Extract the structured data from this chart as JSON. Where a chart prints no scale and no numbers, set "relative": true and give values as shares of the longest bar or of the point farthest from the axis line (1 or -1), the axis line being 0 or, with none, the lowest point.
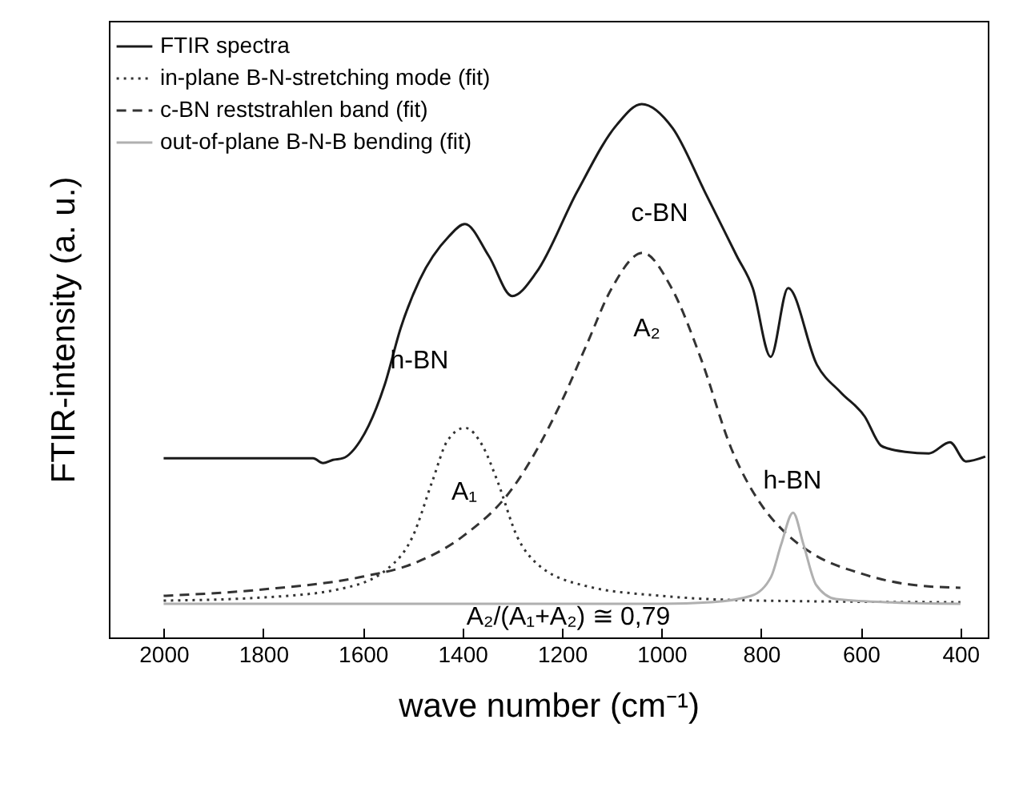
{
  "chart_data": {
    "type": "line",
    "relative": true,
    "xlabel": "wave number  (cm⁻¹)",
    "ylabel": "FTIR-intensity (a. u.)",
    "xlim": [
      2110,
      345
    ],
    "xticks": [
      2000,
      1800,
      1600,
      1400,
      1200,
      1000,
      800,
      600,
      400
    ],
    "grid": false,
    "legend": "top left",
    "tick_labels": "x",
    "series": [
      {
        "name": "FTIR spectra",
        "color": "#1a1a1a",
        "line_style": "solid",
        "x": [
          2000,
          1800,
          1700,
          1680,
          1660,
          1640,
          1605,
          1556,
          1524,
          1486,
          1428,
          1395,
          1347,
          1300,
          1251,
          1170,
          1090,
          1040,
          978,
          913,
          849,
          817,
          781,
          746,
          688,
          640,
          592,
          560,
          544,
          511,
          463,
          421,
          389,
          350
        ],
        "values": [
          0.336,
          0.336,
          0.336,
          0.327,
          0.333,
          0.336,
          0.369,
          0.474,
          0.58,
          0.67,
          0.751,
          0.775,
          0.715,
          0.64,
          0.685,
          0.835,
          0.961,
          1.0,
          0.955,
          0.835,
          0.715,
          0.655,
          0.526,
          0.655,
          0.511,
          0.459,
          0.414,
          0.36,
          0.354,
          0.348,
          0.345,
          0.366,
          0.33,
          0.339
        ]
      },
      {
        "name": "in-plane B-N-stretching mode (fit)",
        "color": "#333333",
        "line_style": "dotted",
        "x": [
          2000,
          1800,
          1650,
          1550,
          1500,
          1460,
          1430,
          1395,
          1360,
          1330,
          1290,
          1250,
          1150,
          1000,
          800,
          400
        ],
        "values": [
          0.069,
          0.075,
          0.09,
          0.129,
          0.189,
          0.294,
          0.369,
          0.393,
          0.36,
          0.294,
          0.189,
          0.138,
          0.096,
          0.078,
          0.069,
          0.066
        ]
      },
      {
        "name": "c-BN reststrahlen band (fit)",
        "color": "#333333",
        "line_style": "dashed",
        "x": [
          2000,
          1800,
          1600,
          1500,
          1400,
          1300,
          1200,
          1150,
          1100,
          1038,
          980,
          920,
          860,
          800,
          750,
          700,
          600,
          500,
          400
        ],
        "values": [
          0.078,
          0.09,
          0.114,
          0.138,
          0.189,
          0.279,
          0.444,
          0.55,
          0.655,
          0.721,
          0.655,
          0.52,
          0.354,
          0.249,
          0.195,
          0.159,
          0.12,
          0.099,
          0.093
        ]
      },
      {
        "name": "out-of-plane B-N-B bending (fit)",
        "color": "#b0b0b0",
        "line_style": "solid",
        "x": [
          2000,
          1000,
          900,
          820,
          780,
          760,
          736,
          715,
          690,
          650,
          550,
          400
        ],
        "values": [
          0.063,
          0.063,
          0.066,
          0.078,
          0.114,
          0.174,
          0.234,
          0.174,
          0.099,
          0.072,
          0.066,
          0.063
        ]
      }
    ],
    "annotations": [
      "h-BN",
      "c-BN",
      "A₂",
      "A₁",
      "h-BN",
      "A₂/(A₁+A₂) ≅ 0,79"
    ]
  }
}
